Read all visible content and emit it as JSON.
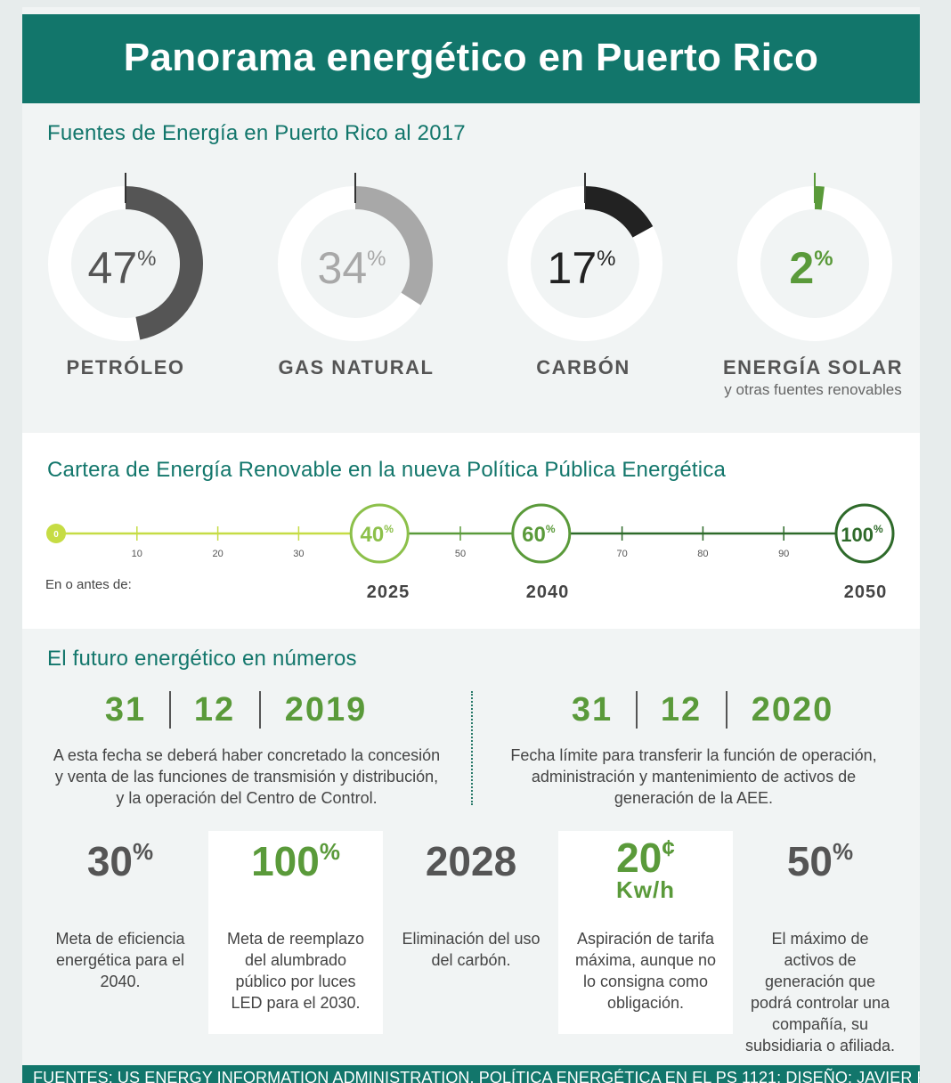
{
  "header": {
    "title": "Panorama energético en Puerto Rico"
  },
  "sections": {
    "fuentes_title": "Fuentes de Energía en Puerto Rico al 2017",
    "cartera_title": "Cartera de Energía Renovable en la nueva Política Pública Energética",
    "futuro_title": "El futuro energético en números"
  },
  "colors": {
    "brand_teal": "#12766b",
    "green": "#5a9a3a",
    "petroleo": "#555555",
    "gas": "#a8a8a8",
    "carbon": "#222222",
    "solar": "#5a9a3a"
  },
  "chart_data": [
    {
      "type": "pie",
      "title": "Fuentes de Energía en Puerto Rico al 2017",
      "unit": "%",
      "categories": [
        "PETRÓLEO",
        "GAS NATURAL",
        "CARBÓN",
        "ENERGÍA SOLAR"
      ],
      "values": [
        47,
        34,
        17,
        2
      ],
      "value_labels": [
        "47",
        "34",
        "17",
        "2"
      ],
      "subtitles": [
        "",
        "",
        "",
        "y otras fuentes renovables"
      ],
      "colors": [
        "#555555",
        "#a8a8a8",
        "#222222",
        "#5a9a3a"
      ]
    },
    {
      "type": "line",
      "title": "Cartera de Energía Renovable en la nueva Política Pública Energética",
      "x_label": "En o antes de:",
      "xlim": [
        0,
        100
      ],
      "ticks": [
        0,
        10,
        20,
        30,
        40,
        50,
        60,
        70,
        80,
        90,
        100
      ],
      "tick_labels": [
        "0",
        "10",
        "20",
        "30",
        "",
        "50",
        "",
        "70",
        "80",
        "90",
        ""
      ],
      "milestones": [
        {
          "value": 40,
          "label": "40",
          "year": "2025"
        },
        {
          "value": 60,
          "label": "60",
          "year": "2040"
        },
        {
          "value": 100,
          "label": "100",
          "year": "2050"
        }
      ]
    }
  ],
  "dates": [
    {
      "day": "31",
      "month": "12",
      "year": "2019",
      "description": "A esta fecha se deberá haber concretado la concesión y venta de las funciones de transmisión y distribución, y la operación del Centro de Control."
    },
    {
      "day": "31",
      "month": "12",
      "year": "2020",
      "description": "Fecha límite para transferir la función de operación, administración y mantenimiento de activos de generación de la AEE."
    }
  ],
  "stats": [
    {
      "value": "30",
      "suffix": "%",
      "unit": "",
      "description": "Meta de eficiencia energética para el 2040."
    },
    {
      "value": "100",
      "suffix": "%",
      "unit": "",
      "description": "Meta de reemplazo del alumbrado público por luces LED para el 2030."
    },
    {
      "value": "2028",
      "suffix": "",
      "unit": "",
      "description": "Eliminación del uso del carbón."
    },
    {
      "value": "20",
      "suffix": "¢",
      "unit": "Kw/h",
      "description": "Aspiración de tarifa máxima, aunque no lo consigna como obligación."
    },
    {
      "value": "50",
      "suffix": "%",
      "unit": "",
      "description": "El máximo de activos de generación que podrá controlar una compañía, su subsidiaria o afiliada."
    }
  ],
  "footer": {
    "sources": "FUENTES: US ENERGY INFORMATION ADMINISTRATION, POLÍTICA ENERGÉTICA EN EL PS 1121; DISEÑO: JAVIER RUIZ MORALES"
  }
}
